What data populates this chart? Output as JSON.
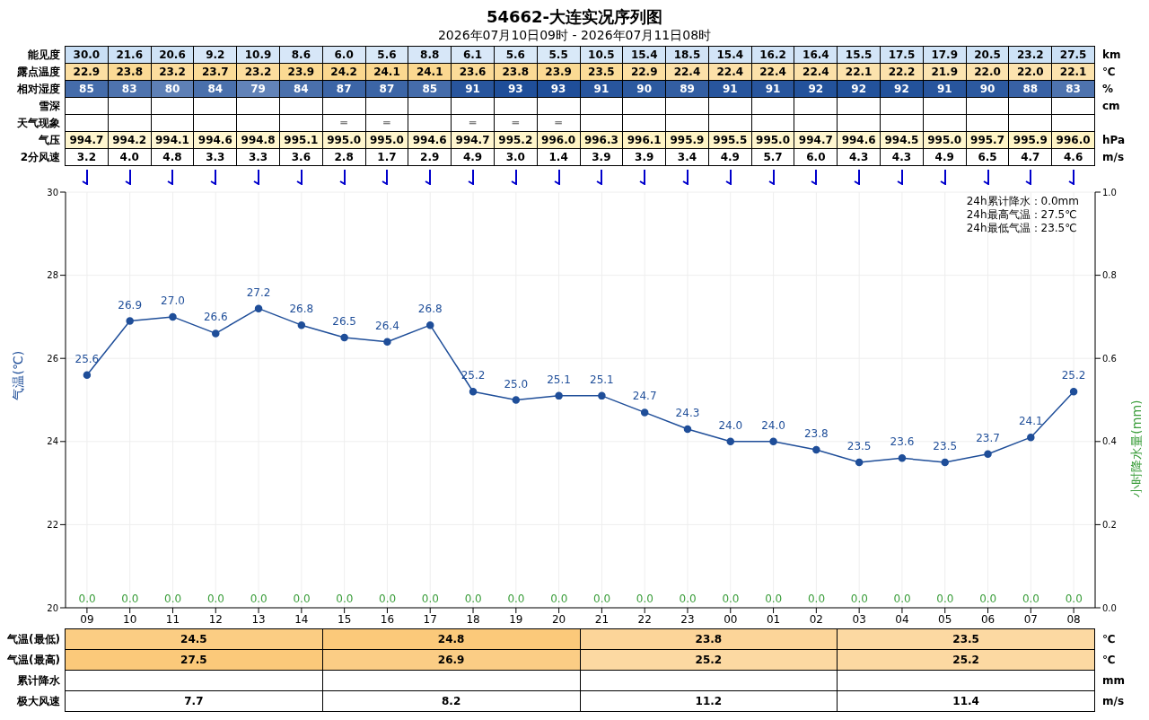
{
  "chart_data": [
    {
      "type": "heatmap",
      "title": "54662-大连实况序列图",
      "subtitle": "2026年07月10日09时 - 2026年07月11日08时",
      "tick_labels": "y",
      "categories": [
        null,
        null,
        null,
        null,
        null,
        null,
        null,
        null,
        null,
        null,
        null,
        null,
        null,
        null,
        null,
        null,
        null,
        null,
        null,
        null,
        null,
        null,
        null,
        null
      ],
      "y_categories": [
        "能见度",
        "露点温度",
        "相对湿度",
        "雪深",
        "天气现象",
        "气压",
        "2分风速"
      ],
      "y2_categories": [
        "km",
        "℃",
        "%",
        "cm",
        null,
        "hPa",
        "m/s"
      ],
      "cells": [
        [
          30.0,
          21.6,
          20.6,
          9.2,
          10.9,
          8.6,
          6.0,
          5.6,
          8.8,
          6.1,
          5.6,
          5.5,
          10.5,
          15.4,
          18.5,
          15.4,
          16.2,
          16.4,
          15.5,
          17.5,
          17.9,
          20.5,
          23.2,
          27.5
        ],
        [
          22.9,
          23.8,
          23.2,
          23.7,
          23.2,
          23.9,
          24.2,
          24.1,
          24.1,
          23.6,
          23.8,
          23.9,
          23.5,
          22.9,
          22.4,
          22.4,
          22.4,
          22.4,
          22.1,
          22.2,
          21.9,
          22.0,
          22.0,
          22.1
        ],
        [
          85,
          83,
          80,
          84,
          79,
          84,
          87,
          87,
          85,
          91,
          93,
          93,
          91,
          90,
          89,
          91,
          91,
          92,
          92,
          92,
          91,
          90,
          88,
          83
        ],
        [
          null,
          null,
          null,
          null,
          null,
          null,
          null,
          null,
          null,
          null,
          null,
          null,
          null,
          null,
          null,
          null,
          null,
          null,
          null,
          null,
          null,
          null,
          null,
          null
        ],
        [
          null,
          null,
          null,
          null,
          null,
          null,
          null,
          null,
          null,
          null,
          null,
          null,
          null,
          null,
          null,
          null,
          null,
          null,
          null,
          null,
          null,
          null,
          null,
          null
        ],
        [
          994.7,
          994.2,
          994.1,
          994.6,
          994.8,
          995.1,
          995.0,
          995.0,
          994.6,
          994.7,
          995.2,
          996.0,
          996.3,
          996.1,
          995.9,
          995.5,
          995.0,
          994.7,
          994.6,
          994.5,
          995.0,
          995.7,
          995.9,
          996.0
        ],
        [
          3.2,
          4.0,
          4.8,
          3.3,
          3.3,
          3.6,
          2.8,
          1.7,
          2.9,
          4.9,
          3.0,
          1.4,
          3.9,
          3.9,
          3.4,
          4.9,
          5.7,
          6.0,
          4.3,
          4.3,
          4.9,
          6.5,
          4.7,
          4.6
        ]
      ],
      "cell_labels": [
        [
          "30.0",
          "21.6",
          "20.6",
          "9.2",
          "10.9",
          "8.6",
          "6.0",
          "5.6",
          "8.8",
          "6.1",
          "5.6",
          "5.5",
          "10.5",
          "15.4",
          "18.5",
          "15.4",
          "16.2",
          "16.4",
          "15.5",
          "17.5",
          "17.9",
          "20.5",
          "23.2",
          "27.5"
        ],
        [
          "22.9",
          "23.8",
          "23.2",
          "23.7",
          "23.2",
          "23.9",
          "24.2",
          "24.1",
          "24.1",
          "23.6",
          "23.8",
          "23.9",
          "23.5",
          "22.9",
          "22.4",
          "22.4",
          "22.4",
          "22.4",
          "22.1",
          "22.2",
          "21.9",
          "22.0",
          "22.0",
          "22.1"
        ],
        [
          "85",
          "83",
          "80",
          "84",
          "79",
          "84",
          "87",
          "87",
          "85",
          "91",
          "93",
          "93",
          "91",
          "90",
          "89",
          "91",
          "91",
          "92",
          "92",
          "92",
          "91",
          "90",
          "88",
          "83"
        ],
        [
          null,
          null,
          null,
          null,
          null,
          null,
          null,
          null,
          null,
          null,
          null,
          null,
          null,
          null,
          null,
          null,
          null,
          null,
          null,
          null,
          null,
          null,
          null,
          null
        ],
        [
          null,
          null,
          null,
          null,
          null,
          null,
          "═",
          "═",
          null,
          "═",
          "═",
          "═",
          null,
          null,
          null,
          null,
          null,
          null,
          null,
          null,
          null,
          null,
          null,
          null
        ],
        [
          "994.7",
          "994.2",
          "994.1",
          "994.6",
          "994.8",
          "995.1",
          "995.0",
          "995.0",
          "994.6",
          "994.7",
          "995.2",
          "996.0",
          "996.3",
          "996.1",
          "995.9",
          "995.5",
          "995.0",
          "994.7",
          "994.6",
          "994.5",
          "995.0",
          "995.7",
          "995.9",
          "996.0"
        ],
        [
          "3.2",
          "4.0",
          "4.8",
          "3.3",
          "3.3",
          "3.6",
          "2.8",
          "1.7",
          "2.9",
          "4.9",
          "3.0",
          "1.4",
          "3.9",
          "3.9",
          "3.4",
          "4.9",
          "5.7",
          "6.0",
          "4.3",
          "4.3",
          "4.9",
          "6.5",
          "4.7",
          "4.6"
        ]
      ]
    },
    {
      "type": "line",
      "ylabel": "气温(℃)",
      "y2label": "小时降水量(mm)",
      "grid": true,
      "legend": false,
      "marker": "circle",
      "line_style": "solid",
      "annotations": [
        "24h累计降水：0.0mm",
        "24h最高气温：27.5℃",
        "24h最低气温：23.5℃"
      ],
      "categories": [
        "09",
        "10",
        "11",
        "12",
        "13",
        "14",
        "15",
        "16",
        "17",
        "18",
        "19",
        "20",
        "21",
        "22",
        "23",
        "00",
        "01",
        "02",
        "03",
        "04",
        "05",
        "06",
        "07",
        "08"
      ],
      "ylim": [
        20,
        30
      ],
      "yticks": [
        20,
        22,
        24,
        26,
        28,
        30
      ],
      "y2lim": [
        0,
        1
      ],
      "y2ticks": [
        {
          "value": 0,
          "label": "0.0"
        },
        {
          "value": 0.2,
          "label": "0.2"
        },
        {
          "value": 0.4,
          "label": "0.4"
        },
        {
          "value": 0.6,
          "label": "0.6"
        },
        {
          "value": 0.8,
          "label": "0.8"
        },
        {
          "value": 1,
          "label": "1.0"
        }
      ],
      "series": [
        {
          "type": "line",
          "color": "#1f4e99",
          "values": [
            25.6,
            26.9,
            27.0,
            26.6,
            27.2,
            26.8,
            26.5,
            26.4,
            26.8,
            25.2,
            25.0,
            25.1,
            25.1,
            24.7,
            24.3,
            24.0,
            24.0,
            23.8,
            23.5,
            23.6,
            23.5,
            23.7,
            24.1,
            25.2
          ],
          "value_labels": [
            "25.6",
            "26.9",
            "27.0",
            "26.6",
            "27.2",
            "26.8",
            "26.5",
            "26.4",
            "26.8",
            "25.2",
            "25.0",
            "25.1",
            "25.1",
            "24.7",
            "24.3",
            "24.0",
            "24.0",
            "23.8",
            "23.5",
            "23.6",
            "23.5",
            "23.7",
            "24.1",
            "25.2"
          ]
        },
        {
          "type": "bar",
          "axis": "y2",
          "color": "#3a9d3a",
          "values": [
            0,
            0,
            0,
            0,
            0,
            0,
            0,
            0,
            0,
            0,
            0,
            0,
            0,
            0,
            0,
            0,
            0,
            0,
            0,
            0,
            0,
            0,
            0,
            0
          ],
          "value_labels": [
            "0.0",
            "0.0",
            "0.0",
            "0.0",
            "0.0",
            "0.0",
            "0.0",
            "0.0",
            "0.0",
            "0.0",
            "0.0",
            "0.0",
            "0.0",
            "0.0",
            "0.0",
            "0.0",
            "0.0",
            "0.0",
            "0.0",
            "0.0",
            "0.0",
            "0.0",
            "0.0",
            "0.0"
          ]
        }
      ]
    },
    {
      "type": "heatmap",
      "tick_labels": "y",
      "categories": [
        null,
        null,
        null,
        null
      ],
      "y_categories": [
        "气温(最低)",
        "气温(最高)",
        "累计降水",
        "极大风速"
      ],
      "y2_categories": [
        "℃",
        "℃",
        "mm",
        "m/s"
      ],
      "cells": [
        [
          24.5,
          24.8,
          23.8,
          23.5
        ],
        [
          27.5,
          26.9,
          25.2,
          25.2
        ],
        [
          null,
          null,
          null,
          null
        ],
        [
          7.7,
          8.2,
          11.2,
          11.4
        ]
      ],
      "cell_labels": [
        [
          "24.5",
          "24.8",
          "23.8",
          "23.5"
        ],
        [
          "27.5",
          "26.9",
          "25.2",
          "25.2"
        ],
        [
          null,
          null,
          null,
          null
        ],
        [
          "7.7",
          "8.2",
          "11.2",
          "11.4"
        ]
      ]
    }
  ]
}
